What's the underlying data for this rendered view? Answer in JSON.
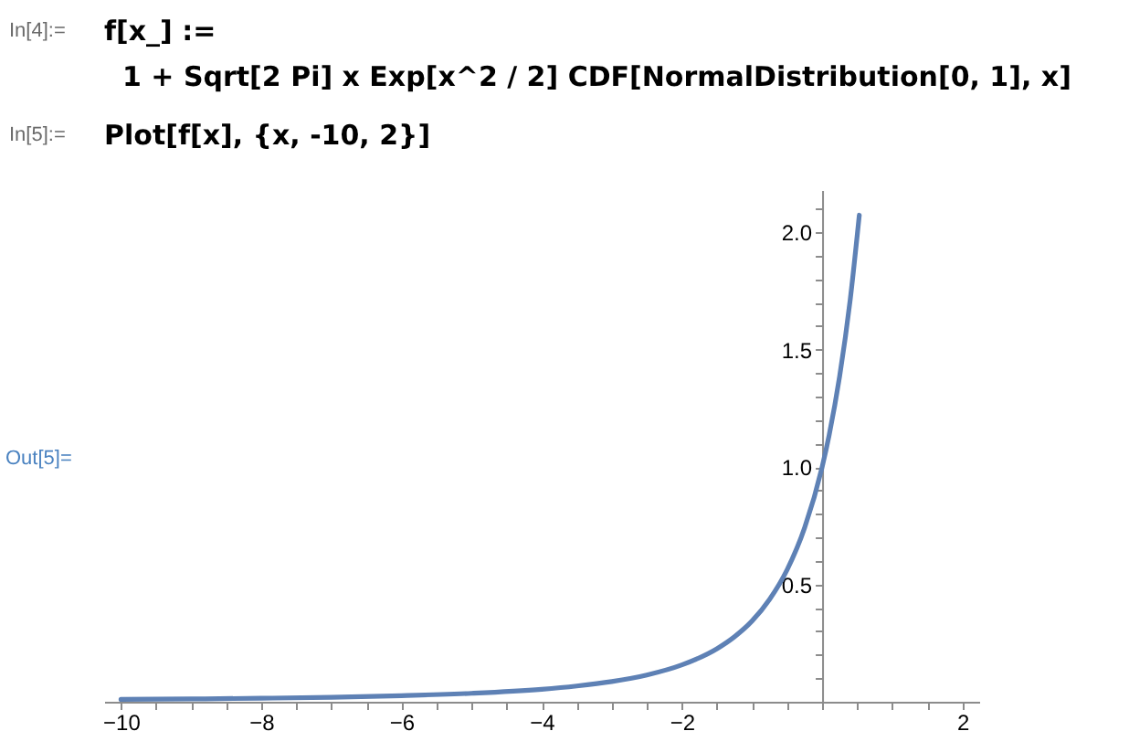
{
  "chart_data": {
    "type": "line",
    "x": [
      -10,
      -9,
      -8,
      -7,
      -6,
      -5,
      -4,
      -3.5,
      -3,
      -2.5,
      -2,
      -1.5,
      -1.25,
      -1,
      -0.75,
      -0.5,
      -0.25,
      0,
      0.1,
      0.25,
      0.4,
      0.53
    ],
    "series": [
      {
        "color": "#5e81b5",
        "values": [
          0.01,
          0.012,
          0.015,
          0.019,
          0.026,
          0.036,
          0.053,
          0.067,
          0.086,
          0.114,
          0.157,
          0.226,
          0.277,
          0.344,
          0.436,
          0.562,
          0.741,
          1.0,
          1.136,
          1.387,
          1.712,
          2.073
        ]
      }
    ],
    "xlim": [
      -10.24,
      2.24
    ],
    "ylim": [
      0,
      2.18
    ],
    "xticks": [
      -10,
      {
        "value": -9.5,
        "label": null
      },
      {
        "value": -9,
        "label": null
      },
      {
        "value": -8.5,
        "label": null
      },
      -8,
      {
        "value": -7.5,
        "label": null
      },
      {
        "value": -7,
        "label": null
      },
      {
        "value": -6.5,
        "label": null
      },
      -6,
      {
        "value": -5.5,
        "label": null
      },
      {
        "value": -5,
        "label": null
      },
      {
        "value": -4.5,
        "label": null
      },
      -4,
      {
        "value": -3.5,
        "label": null
      },
      {
        "value": -3,
        "label": null
      },
      {
        "value": -2.5,
        "label": null
      },
      -2,
      {
        "value": -1.5,
        "label": null
      },
      {
        "value": -1,
        "label": null
      },
      {
        "value": -0.5,
        "label": null
      },
      {
        "value": 0,
        "label": null
      },
      {
        "value": 0.5,
        "label": null
      },
      {
        "value": 1,
        "label": null
      },
      {
        "value": 1.5,
        "label": null
      },
      2
    ],
    "yticks": [
      {
        "value": 0.1,
        "label": null
      },
      {
        "value": 0.2,
        "label": null
      },
      {
        "value": 0.3,
        "label": null
      },
      {
        "value": 0.4,
        "label": null
      },
      0.5,
      {
        "value": 0.6,
        "label": null
      },
      {
        "value": 0.7,
        "label": null
      },
      {
        "value": 0.8,
        "label": null
      },
      {
        "value": 0.9,
        "label": null
      },
      {
        "value": 1,
        "label": "1.0"
      },
      {
        "value": 1.1,
        "label": null
      },
      {
        "value": 1.2,
        "label": null
      },
      {
        "value": 1.3,
        "label": null
      },
      {
        "value": 1.4,
        "label": null
      },
      1.5,
      {
        "value": 1.6,
        "label": null
      },
      {
        "value": 1.7,
        "label": null
      },
      {
        "value": 1.8,
        "label": null
      },
      {
        "value": 1.9,
        "label": null
      },
      {
        "value": 2,
        "label": "2.0"
      },
      {
        "value": 2.1,
        "label": null
      }
    ],
    "annotations": [
      "In[4]:=",
      "f[x_] :=",
      "1 + Sqrt[2 Pi] x Exp[x^2 / 2] CDF[NormalDistribution[0, 1], x]",
      "In[5]:=",
      "Plot[f[x], {x, -10, 2}]",
      "Out[5]="
    ]
  }
}
